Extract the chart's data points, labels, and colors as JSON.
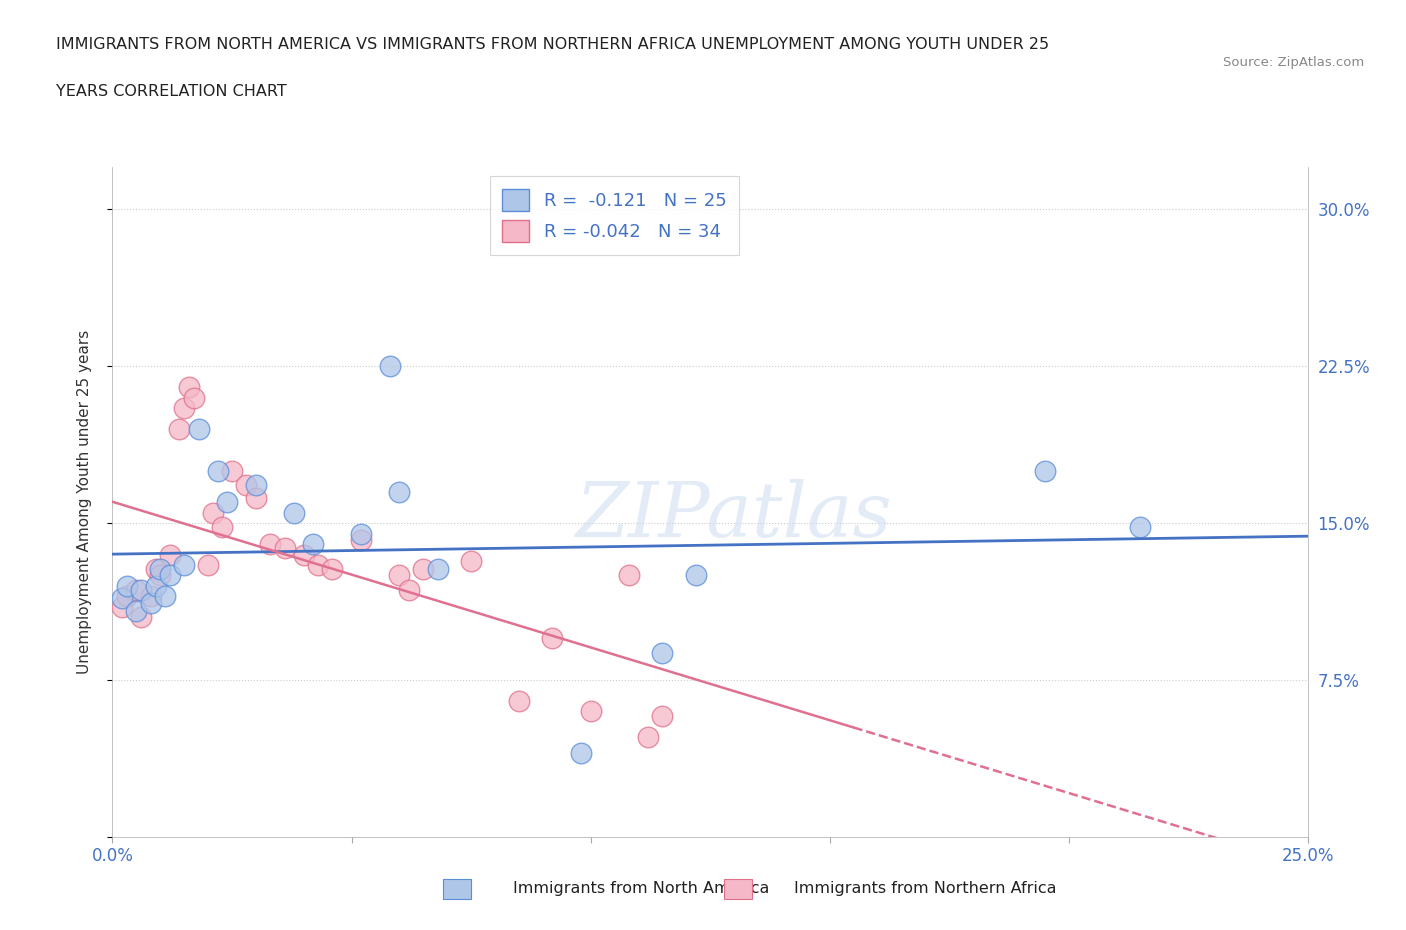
{
  "title_line1": "IMMIGRANTS FROM NORTH AMERICA VS IMMIGRANTS FROM NORTHERN AFRICA UNEMPLOYMENT AMONG YOUTH UNDER 25",
  "title_line2": "YEARS CORRELATION CHART",
  "source": "Source: ZipAtlas.com",
  "ylabel": "Unemployment Among Youth under 25 years",
  "xlim": [
    0.0,
    0.25
  ],
  "ylim": [
    0.0,
    0.32
  ],
  "xticks": [
    0.0,
    0.05,
    0.1,
    0.15,
    0.2,
    0.25
  ],
  "yticks": [
    0.0,
    0.075,
    0.15,
    0.225,
    0.3
  ],
  "r_blue": -0.121,
  "n_blue": 25,
  "r_pink": -0.042,
  "n_pink": 34,
  "color_blue": "#aec6e8",
  "color_pink": "#f5b8c8",
  "edge_blue": "#5b8dd9",
  "edge_pink": "#e0708a",
  "line_blue": "#4472C4",
  "line_pink": "#e07090",
  "watermark": "ZIPatlas",
  "blue_scatter_x": [
    0.002,
    0.003,
    0.005,
    0.006,
    0.008,
    0.009,
    0.01,
    0.011,
    0.012,
    0.015,
    0.018,
    0.022,
    0.024,
    0.03,
    0.038,
    0.042,
    0.052,
    0.058,
    0.06,
    0.068,
    0.098,
    0.115,
    0.122,
    0.195,
    0.215
  ],
  "blue_scatter_y": [
    0.114,
    0.12,
    0.108,
    0.118,
    0.112,
    0.12,
    0.128,
    0.115,
    0.125,
    0.13,
    0.195,
    0.175,
    0.16,
    0.168,
    0.155,
    0.14,
    0.145,
    0.225,
    0.165,
    0.128,
    0.04,
    0.088,
    0.125,
    0.175,
    0.148
  ],
  "pink_scatter_x": [
    0.002,
    0.003,
    0.005,
    0.006,
    0.008,
    0.009,
    0.01,
    0.012,
    0.014,
    0.015,
    0.016,
    0.017,
    0.02,
    0.021,
    0.023,
    0.025,
    0.028,
    0.03,
    0.033,
    0.036,
    0.04,
    0.043,
    0.046,
    0.052,
    0.06,
    0.062,
    0.065,
    0.075,
    0.085,
    0.092,
    0.1,
    0.108,
    0.112,
    0.115
  ],
  "pink_scatter_y": [
    0.11,
    0.115,
    0.118,
    0.105,
    0.115,
    0.128,
    0.125,
    0.135,
    0.195,
    0.205,
    0.215,
    0.21,
    0.13,
    0.155,
    0.148,
    0.175,
    0.168,
    0.162,
    0.14,
    0.138,
    0.135,
    0.13,
    0.128,
    0.142,
    0.125,
    0.118,
    0.128,
    0.132,
    0.065,
    0.095,
    0.06,
    0.125,
    0.048,
    0.058
  ]
}
